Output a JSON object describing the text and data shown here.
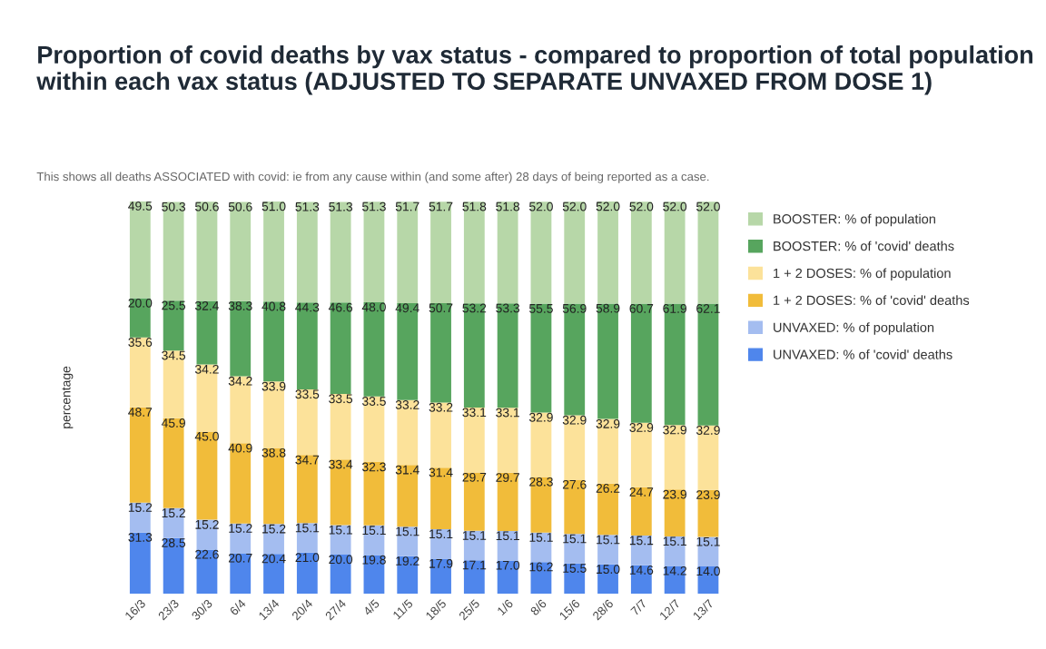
{
  "chart_data": {
    "type": "bar",
    "title": "Proportion of covid deaths by vax status - compared to proportion of total population within each vax status (ADJUSTED TO SEPARATE UNVAXED FROM DOSE 1)",
    "subtitle": "This shows all deaths ASSOCIATED with covid: ie from any cause within (and some after) 28 days of being reported as a case.",
    "ylabel": "percentage",
    "stacked": true,
    "legend": "right",
    "grid": false,
    "tick_labels": "x",
    "categories": [
      "16/3",
      "23/3",
      "30/3",
      "6/4",
      "13/4",
      "20/4",
      "27/4",
      "4/5",
      "11/5",
      "18/5",
      "25/5",
      "1/6",
      "8/6",
      "15/6",
      "28/6",
      "7/7",
      "12/7",
      "13/7"
    ],
    "series": [
      {
        "name": "UNVAXED: % of 'covid' deaths",
        "color": "#4f86ec",
        "values": [
          31.3,
          28.5,
          22.6,
          20.7,
          20.4,
          21.0,
          20.0,
          19.8,
          19.2,
          17.9,
          17.1,
          17.0,
          16.2,
          15.5,
          15.0,
          14.6,
          14.2,
          14.0
        ],
        "value_labels": [
          "31.3",
          "28.5",
          "22.6",
          "20.7",
          "20.4",
          "21.0",
          "20.0",
          "19.8",
          "19.2",
          "17.9",
          "17.1",
          "17.0",
          "16.2",
          "15.5",
          "15.0",
          "14.6",
          "14.2",
          "14.0"
        ]
      },
      {
        "name": "UNVAXED: % of population",
        "color": "#a4bdf0",
        "values": [
          15.2,
          15.2,
          15.2,
          15.2,
          15.2,
          15.1,
          15.1,
          15.1,
          15.1,
          15.1,
          15.1,
          15.1,
          15.1,
          15.1,
          15.1,
          15.1,
          15.1,
          15.1
        ],
        "value_labels": [
          "15.2",
          "15.2",
          "15.2",
          "15.2",
          "15.2",
          "15.1",
          "15.1",
          "15.1",
          "15.1",
          "15.1",
          "15.1",
          "15.1",
          "15.1",
          "15.1",
          "15.1",
          "15.1",
          "15.1",
          "15.1"
        ]
      },
      {
        "name": "1 + 2 DOSES: % of 'covid' deaths",
        "color": "#f1bc3a",
        "values": [
          48.7,
          45.9,
          45.0,
          40.9,
          38.8,
          34.7,
          33.4,
          32.3,
          31.4,
          31.4,
          29.7,
          29.7,
          28.3,
          27.6,
          26.2,
          24.7,
          23.9,
          23.9
        ],
        "value_labels": [
          "48.7",
          "45.9",
          "45.0",
          "40.9",
          "38.8",
          "34.7",
          "33.4",
          "32.3",
          "31.4",
          "31.4",
          "29.7",
          "29.7",
          "28.3",
          "27.6",
          "26.2",
          "24.7",
          "23.9",
          "23.9"
        ]
      },
      {
        "name": "1 + 2 DOSES: % of population",
        "color": "#fce29a",
        "values": [
          35.6,
          34.5,
          34.2,
          34.2,
          33.9,
          33.5,
          33.5,
          33.5,
          33.2,
          33.2,
          33.1,
          33.1,
          32.9,
          32.9,
          32.9,
          32.9,
          32.9,
          32.9
        ],
        "value_labels": [
          "35.6",
          "34.5",
          "34.2",
          "34.2",
          "33.9",
          "33.5",
          "33.5",
          "33.5",
          "33.2",
          "33.2",
          "33.1",
          "33.1",
          "32.9",
          "32.9",
          "32.9",
          "32.9",
          "32.9",
          "32.9"
        ]
      },
      {
        "name": "BOOSTER: % of 'covid' deaths",
        "color": "#57a55e",
        "values": [
          20.0,
          25.5,
          32.4,
          38.3,
          40.8,
          44.3,
          46.6,
          48.0,
          49.4,
          50.7,
          53.2,
          53.3,
          55.5,
          56.9,
          58.9,
          60.7,
          61.9,
          62.1
        ],
        "value_labels": [
          "20.0",
          "25.5",
          "32.4",
          "38.3",
          "40.8",
          "44.3",
          "46.6",
          "48.0",
          "49.4",
          "50.7",
          "53.2",
          "53.3",
          "55.5",
          "56.9",
          "58.9",
          "60.7",
          "61.9",
          "62.1"
        ]
      },
      {
        "name": "BOOSTER: % of population",
        "color": "#b7d7a8",
        "values": [
          49.5,
          50.3,
          50.6,
          50.6,
          51.0,
          51.3,
          51.3,
          51.3,
          51.7,
          51.7,
          51.8,
          51.8,
          52.0,
          52.0,
          52.0,
          52.0,
          52.0,
          52.0
        ],
        "value_labels": [
          "49.5",
          "50.3",
          "50.6",
          "50.6",
          "51.0",
          "51.3",
          "51.3",
          "51.3",
          "51.7",
          "51.7",
          "51.8",
          "51.8",
          "52.0",
          "52.0",
          "52.0",
          "52.0",
          "52.0",
          "52.0"
        ]
      }
    ]
  }
}
